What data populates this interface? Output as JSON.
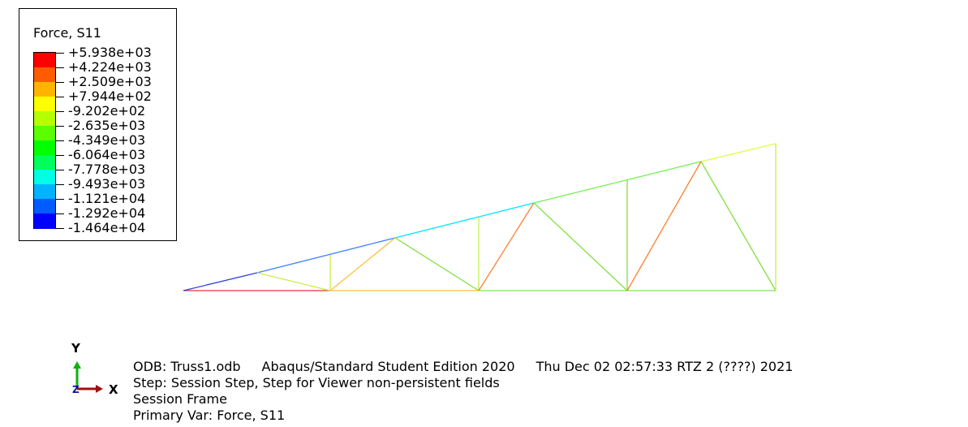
{
  "legend": {
    "title": "Force, S11",
    "labels": [
      "+5.938e+03",
      "+4.224e+03",
      "+2.509e+03",
      "+7.944e+02",
      "-9.202e+02",
      "-2.635e+03",
      "-4.349e+03",
      "-6.064e+03",
      "-7.778e+03",
      "-9.493e+03",
      "-1.121e+04",
      "-1.292e+04",
      "-1.464e+04"
    ],
    "colors": [
      "#ff0000",
      "#ff5c00",
      "#ffb400",
      "#ffff00",
      "#b4ff00",
      "#5cff00",
      "#00ff00",
      "#00ff5c",
      "#00ffe6",
      "#00b4ff",
      "#005cff",
      "#0000ff"
    ]
  },
  "member_colors": {
    "bottom_chord_left": "#e8303a",
    "bottom_chord_mid": "#ffc040",
    "bottom_chord_right": "#7ee650",
    "top_chord_1": "#3040e0",
    "top_chord_2": "#4080ff",
    "top_chord_3": "#00e6ff",
    "top_chord_4": "#70f050",
    "top_chord_5": "#e0ff40",
    "diagonal_orange": "#ff8030",
    "diagonal_light_orange": "#ffc040",
    "web_green": "#80e040",
    "web_yellow_green": "#c8f040"
  },
  "triad": {
    "y_label": "Y",
    "x_label": "X",
    "z_label": "Z"
  },
  "info": {
    "odb": "ODB: Truss1.odb",
    "edition": "Abaqus/Standard Student Edition 2020",
    "timestamp": "Thu Dec 02 02:57:33 RTZ 2 (????) 2021",
    "step": "Step: Session Step, Step for Viewer non-persistent fields",
    "frame": "Session Frame",
    "primary_var": "Primary Var: Force, S11"
  }
}
